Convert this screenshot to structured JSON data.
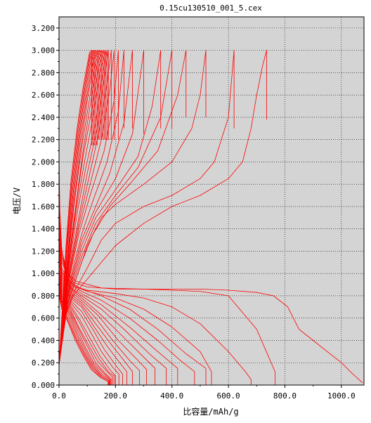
{
  "chart_data": {
    "type": "line",
    "title": "0.15cu130510_001_5.cex",
    "xlabel": "比容量/mAh/g",
    "ylabel": "电压/V",
    "xlim": [
      0,
      1080
    ],
    "ylim": [
      0,
      3.3
    ],
    "x_ticks": [
      0,
      200,
      400,
      600,
      800,
      1000
    ],
    "x_tick_labels": [
      "0.0",
      "200.0",
      "400.0",
      "600.0",
      "800.0",
      "1000.0"
    ],
    "y_ticks": [
      0,
      0.2,
      0.4,
      0.6,
      0.8,
      1.0,
      1.2,
      1.4,
      1.6,
      1.8,
      2.0,
      2.2,
      2.4,
      2.6,
      2.8,
      3.0,
      3.2
    ],
    "y_tick_labels": [
      "0.000",
      "0.200",
      "0.400",
      "0.600",
      "0.800",
      "1.000",
      "1.200",
      "1.400",
      "1.600",
      "1.800",
      "2.000",
      "2.200",
      "2.400",
      "2.600",
      "2.800",
      "3.000",
      "3.200"
    ],
    "grid": true,
    "background": "#d4d4d4",
    "line_color": "#ff0000",
    "series": [
      {
        "kind": "discharge",
        "x": [
          0,
          3,
          10,
          30,
          60,
          150,
          300,
          400,
          500,
          600,
          700,
          760,
          810,
          830,
          850,
          900,
          950,
          1000,
          1040,
          1075
        ],
        "y": [
          2.08,
          1.5,
          1.2,
          1.0,
          0.93,
          0.87,
          0.86,
          0.86,
          0.86,
          0.85,
          0.83,
          0.8,
          0.7,
          0.6,
          0.5,
          0.4,
          0.3,
          0.2,
          0.1,
          0.02
        ]
      },
      {
        "kind": "charge",
        "x": [
          0,
          20,
          50,
          100,
          200,
          300,
          400,
          500,
          600,
          650,
          680,
          700,
          720,
          735,
          735
        ],
        "y": [
          0.18,
          0.6,
          0.8,
          0.95,
          1.25,
          1.45,
          1.6,
          1.7,
          1.85,
          2.0,
          2.3,
          2.6,
          2.85,
          3.0,
          2.38
        ]
      },
      {
        "kind": "discharge",
        "x": [
          0,
          5,
          20,
          50,
          100,
          200,
          300,
          400,
          500,
          600,
          700,
          765,
          765
        ],
        "y": [
          1.9,
          1.3,
          1.05,
          0.92,
          0.88,
          0.86,
          0.86,
          0.85,
          0.84,
          0.8,
          0.5,
          0.12,
          0.0
        ]
      },
      {
        "kind": "charge",
        "x": [
          0,
          20,
          50,
          100,
          150,
          200,
          300,
          400,
          500,
          550,
          600,
          620,
          620
        ],
        "y": [
          0.18,
          0.62,
          0.82,
          1.05,
          1.3,
          1.45,
          1.6,
          1.7,
          1.85,
          2.0,
          2.4,
          3.0,
          2.3
        ]
      },
      {
        "kind": "discharge",
        "x": [
          0,
          10,
          30,
          60,
          100,
          200,
          300,
          400,
          500,
          600,
          660,
          680,
          680
        ],
        "y": [
          1.7,
          1.2,
          0.95,
          0.88,
          0.85,
          0.82,
          0.78,
          0.7,
          0.55,
          0.3,
          0.12,
          0.05,
          0.0
        ]
      },
      {
        "kind": "charge",
        "x": [
          0,
          20,
          60,
          100,
          150,
          200,
          300,
          400,
          470,
          500,
          520,
          520
        ],
        "y": [
          0.18,
          0.65,
          0.95,
          1.25,
          1.5,
          1.62,
          1.8,
          2.0,
          2.3,
          2.6,
          3.0,
          2.4
        ]
      },
      {
        "kind": "discharge",
        "x": [
          0,
          10,
          30,
          60,
          100,
          200,
          300,
          400,
          500,
          540,
          540
        ],
        "y": [
          1.6,
          1.15,
          0.95,
          0.88,
          0.84,
          0.78,
          0.68,
          0.52,
          0.3,
          0.12,
          0.0
        ]
      },
      {
        "kind": "charge",
        "x": [
          0,
          30,
          80,
          120,
          180,
          250,
          350,
          420,
          450,
          450
        ],
        "y": [
          0.18,
          0.72,
          1.1,
          1.35,
          1.6,
          1.8,
          2.1,
          2.6,
          3.0,
          2.4
        ]
      },
      {
        "kind": "discharge",
        "x": [
          0,
          10,
          40,
          80,
          150,
          250,
          350,
          450,
          520,
          520
        ],
        "y": [
          1.5,
          1.1,
          0.92,
          0.86,
          0.8,
          0.68,
          0.5,
          0.28,
          0.15,
          0.0
        ]
      },
      {
        "kind": "charge",
        "x": [
          0,
          30,
          80,
          130,
          200,
          280,
          360,
          400,
          400
        ],
        "y": [
          0.18,
          0.75,
          1.15,
          1.45,
          1.7,
          1.95,
          2.4,
          3.0,
          2.3
        ]
      },
      {
        "kind": "discharge",
        "x": [
          0,
          10,
          40,
          80,
          150,
          250,
          350,
          430,
          480,
          480
        ],
        "y": [
          1.4,
          1.05,
          0.9,
          0.84,
          0.76,
          0.6,
          0.4,
          0.22,
          0.12,
          0.0
        ]
      },
      {
        "kind": "charge",
        "x": [
          0,
          30,
          80,
          130,
          200,
          280,
          330,
          360,
          360
        ],
        "y": [
          0.18,
          0.78,
          1.2,
          1.5,
          1.75,
          2.05,
          2.5,
          3.0,
          2.3
        ]
      },
      {
        "kind": "discharge",
        "x": [
          0,
          10,
          40,
          80,
          150,
          250,
          350,
          420,
          420
        ],
        "y": [
          1.35,
          1.02,
          0.88,
          0.82,
          0.72,
          0.52,
          0.3,
          0.15,
          0.0
        ]
      },
      {
        "kind": "charge",
        "x": [
          0,
          30,
          80,
          130,
          200,
          260,
          300,
          300
        ],
        "y": [
          0.18,
          0.8,
          1.25,
          1.55,
          1.85,
          2.25,
          3.0,
          2.25
        ]
      },
      {
        "kind": "discharge",
        "x": [
          0,
          10,
          40,
          80,
          150,
          230,
          320,
          380,
          380
        ],
        "y": [
          1.3,
          1.0,
          0.87,
          0.8,
          0.68,
          0.5,
          0.28,
          0.15,
          0.0
        ]
      },
      {
        "kind": "charge",
        "x": [
          0,
          30,
          80,
          130,
          180,
          230,
          260,
          260
        ],
        "y": [
          0.18,
          0.82,
          1.3,
          1.6,
          1.9,
          2.35,
          3.0,
          2.3
        ]
      },
      {
        "kind": "discharge",
        "x": [
          0,
          10,
          40,
          80,
          140,
          220,
          300,
          340,
          340
        ],
        "y": [
          1.25,
          0.98,
          0.86,
          0.78,
          0.65,
          0.45,
          0.25,
          0.15,
          0.0
        ]
      },
      {
        "kind": "charge",
        "x": [
          0,
          30,
          80,
          120,
          170,
          210,
          230,
          230
        ],
        "y": [
          0.18,
          0.85,
          1.35,
          1.65,
          2.0,
          2.45,
          3.0,
          2.3
        ]
      },
      {
        "kind": "discharge",
        "x": [
          0,
          10,
          40,
          80,
          140,
          210,
          280,
          310,
          310
        ],
        "y": [
          1.2,
          0.96,
          0.84,
          0.76,
          0.62,
          0.4,
          0.22,
          0.14,
          0.0
        ]
      },
      {
        "kind": "charge",
        "x": [
          0,
          30,
          70,
          110,
          160,
          195,
          210,
          210
        ],
        "y": [
          0.18,
          0.88,
          1.35,
          1.7,
          2.1,
          2.55,
          3.0,
          2.2
        ]
      },
      {
        "kind": "discharge",
        "x": [
          0,
          10,
          40,
          80,
          130,
          190,
          250,
          285,
          285
        ],
        "y": [
          1.15,
          0.94,
          0.82,
          0.74,
          0.6,
          0.4,
          0.22,
          0.13,
          0.0
        ]
      },
      {
        "kind": "charge",
        "x": [
          0,
          30,
          70,
          110,
          150,
          180,
          195,
          195
        ],
        "y": [
          0.18,
          0.9,
          1.4,
          1.8,
          2.2,
          2.65,
          3.0,
          2.2
        ]
      },
      {
        "kind": "discharge",
        "x": [
          0,
          10,
          40,
          80,
          130,
          180,
          230,
          260,
          260
        ],
        "y": [
          1.1,
          0.92,
          0.8,
          0.72,
          0.55,
          0.38,
          0.22,
          0.12,
          0.0
        ]
      },
      {
        "kind": "charge",
        "x": [
          0,
          30,
          70,
          105,
          140,
          170,
          185,
          185
        ],
        "y": [
          0.18,
          0.92,
          1.45,
          1.85,
          2.25,
          2.7,
          3.0,
          2.2
        ]
      },
      {
        "kind": "discharge",
        "x": [
          0,
          10,
          40,
          80,
          125,
          170,
          215,
          240,
          240
        ],
        "y": [
          1.05,
          0.9,
          0.78,
          0.7,
          0.52,
          0.35,
          0.2,
          0.12,
          0.0
        ]
      },
      {
        "kind": "charge",
        "x": [
          0,
          30,
          70,
          100,
          135,
          160,
          175,
          175
        ],
        "y": [
          0.18,
          0.95,
          1.5,
          1.9,
          2.3,
          2.75,
          3.0,
          2.2
        ]
      },
      {
        "kind": "discharge",
        "x": [
          0,
          10,
          40,
          80,
          120,
          160,
          200,
          225,
          225
        ],
        "y": [
          1.02,
          0.88,
          0.76,
          0.66,
          0.5,
          0.32,
          0.18,
          0.1,
          0.0
        ]
      },
      {
        "kind": "charge",
        "x": [
          0,
          30,
          65,
          95,
          130,
          155,
          170,
          170
        ],
        "y": [
          0.18,
          0.97,
          1.55,
          1.95,
          2.35,
          2.8,
          3.0,
          2.2
        ]
      },
      {
        "kind": "discharge",
        "x": [
          0,
          10,
          40,
          80,
          115,
          150,
          190,
          212,
          212
        ],
        "y": [
          1.0,
          0.86,
          0.74,
          0.62,
          0.46,
          0.3,
          0.16,
          0.1,
          0.0
        ]
      },
      {
        "kind": "charge",
        "x": [
          0,
          30,
          60,
          90,
          120,
          145,
          165,
          165
        ],
        "y": [
          0.18,
          1.0,
          1.55,
          2.0,
          2.4,
          2.8,
          3.0,
          2.2
        ]
      },
      {
        "kind": "discharge",
        "x": [
          0,
          10,
          40,
          75,
          110,
          145,
          180,
          200,
          200
        ],
        "y": [
          0.98,
          0.84,
          0.72,
          0.58,
          0.42,
          0.26,
          0.14,
          0.08,
          0.0
        ]
      },
      {
        "kind": "charge",
        "x": [
          0,
          30,
          60,
          85,
          115,
          140,
          160,
          160
        ],
        "y": [
          0.18,
          1.02,
          1.6,
          2.05,
          2.45,
          2.85,
          3.0,
          2.2
        ]
      },
      {
        "kind": "discharge",
        "x": [
          0,
          10,
          40,
          75,
          105,
          140,
          175,
          195,
          195
        ],
        "y": [
          0.96,
          0.82,
          0.7,
          0.55,
          0.4,
          0.24,
          0.12,
          0.08,
          0.0
        ]
      },
      {
        "kind": "charge",
        "x": [
          0,
          30,
          60,
          85,
          110,
          135,
          155,
          155
        ],
        "y": [
          0.18,
          1.05,
          1.62,
          2.1,
          2.5,
          2.88,
          3.0,
          2.2
        ]
      },
      {
        "kind": "discharge",
        "x": [
          0,
          10,
          40,
          70,
          100,
          135,
          170,
          190,
          190
        ],
        "y": [
          0.94,
          0.8,
          0.68,
          0.52,
          0.38,
          0.22,
          0.12,
          0.07,
          0.0
        ]
      },
      {
        "kind": "charge",
        "x": [
          0,
          30,
          55,
          80,
          105,
          130,
          150,
          150
        ],
        "y": [
          0.18,
          1.08,
          1.65,
          2.12,
          2.52,
          2.9,
          3.0,
          2.2
        ]
      },
      {
        "kind": "discharge",
        "x": [
          0,
          10,
          40,
          70,
          100,
          130,
          165,
          185,
          185
        ],
        "y": [
          0.92,
          0.78,
          0.66,
          0.5,
          0.35,
          0.2,
          0.1,
          0.06,
          0.0
        ]
      },
      {
        "kind": "charge",
        "x": [
          0,
          30,
          55,
          78,
          100,
          125,
          145,
          145
        ],
        "y": [
          0.18,
          1.1,
          1.68,
          2.15,
          2.55,
          2.92,
          3.0,
          2.2
        ]
      },
      {
        "kind": "discharge",
        "x": [
          0,
          10,
          40,
          68,
          95,
          125,
          160,
          182,
          182
        ],
        "y": [
          0.9,
          0.76,
          0.64,
          0.48,
          0.33,
          0.19,
          0.1,
          0.05,
          0.0
        ]
      },
      {
        "kind": "charge",
        "x": [
          0,
          30,
          52,
          75,
          98,
          122,
          140,
          140
        ],
        "y": [
          0.18,
          1.12,
          1.7,
          2.18,
          2.58,
          2.93,
          3.0,
          2.2
        ]
      },
      {
        "kind": "discharge",
        "x": [
          0,
          10,
          40,
          65,
          92,
          122,
          155,
          180,
          180
        ],
        "y": [
          0.88,
          0.75,
          0.62,
          0.46,
          0.32,
          0.18,
          0.09,
          0.05,
          0.0
        ]
      },
      {
        "kind": "charge",
        "x": [
          0,
          30,
          50,
          72,
          95,
          118,
          135,
          135
        ],
        "y": [
          0.18,
          1.15,
          1.72,
          2.2,
          2.6,
          2.94,
          3.0,
          2.15
        ]
      },
      {
        "kind": "discharge",
        "x": [
          0,
          10,
          38,
          62,
          90,
          120,
          152,
          178,
          178
        ],
        "y": [
          0.86,
          0.74,
          0.6,
          0.45,
          0.3,
          0.17,
          0.08,
          0.04,
          0.0
        ]
      },
      {
        "kind": "charge",
        "x": [
          0,
          28,
          48,
          70,
          92,
          115,
          130,
          130
        ],
        "y": [
          0.18,
          1.18,
          1.75,
          2.22,
          2.62,
          2.95,
          3.0,
          2.15
        ]
      },
      {
        "kind": "discharge",
        "x": [
          0,
          10,
          36,
          60,
          88,
          118,
          150,
          176,
          176
        ],
        "y": [
          0.84,
          0.72,
          0.58,
          0.43,
          0.29,
          0.16,
          0.08,
          0.04,
          0.0
        ]
      },
      {
        "kind": "charge",
        "x": [
          0,
          27,
          46,
          68,
          90,
          112,
          125,
          125
        ],
        "y": [
          0.18,
          1.2,
          1.78,
          2.25,
          2.64,
          2.96,
          3.0,
          2.15
        ]
      },
      {
        "kind": "discharge",
        "x": [
          0,
          10,
          35,
          58,
          86,
          116,
          148,
          175,
          175
        ],
        "y": [
          0.82,
          0.7,
          0.56,
          0.42,
          0.28,
          0.15,
          0.07,
          0.03,
          0.0
        ]
      },
      {
        "kind": "charge",
        "x": [
          0,
          26,
          44,
          66,
          88,
          110,
          120,
          120
        ],
        "y": [
          0.18,
          1.22,
          1.8,
          2.28,
          2.66,
          2.97,
          3.0,
          2.15
        ]
      },
      {
        "kind": "discharge",
        "x": [
          0,
          10,
          34,
          56,
          84,
          114,
          146,
          174,
          174
        ],
        "y": [
          0.8,
          0.68,
          0.55,
          0.41,
          0.27,
          0.14,
          0.07,
          0.03,
          0.0
        ]
      },
      {
        "kind": "charge",
        "x": [
          0,
          25,
          42,
          64,
          86,
          108,
          116,
          116
        ],
        "y": [
          0.18,
          1.25,
          1.82,
          2.3,
          2.68,
          2.98,
          3.0,
          2.15
        ]
      }
    ]
  }
}
